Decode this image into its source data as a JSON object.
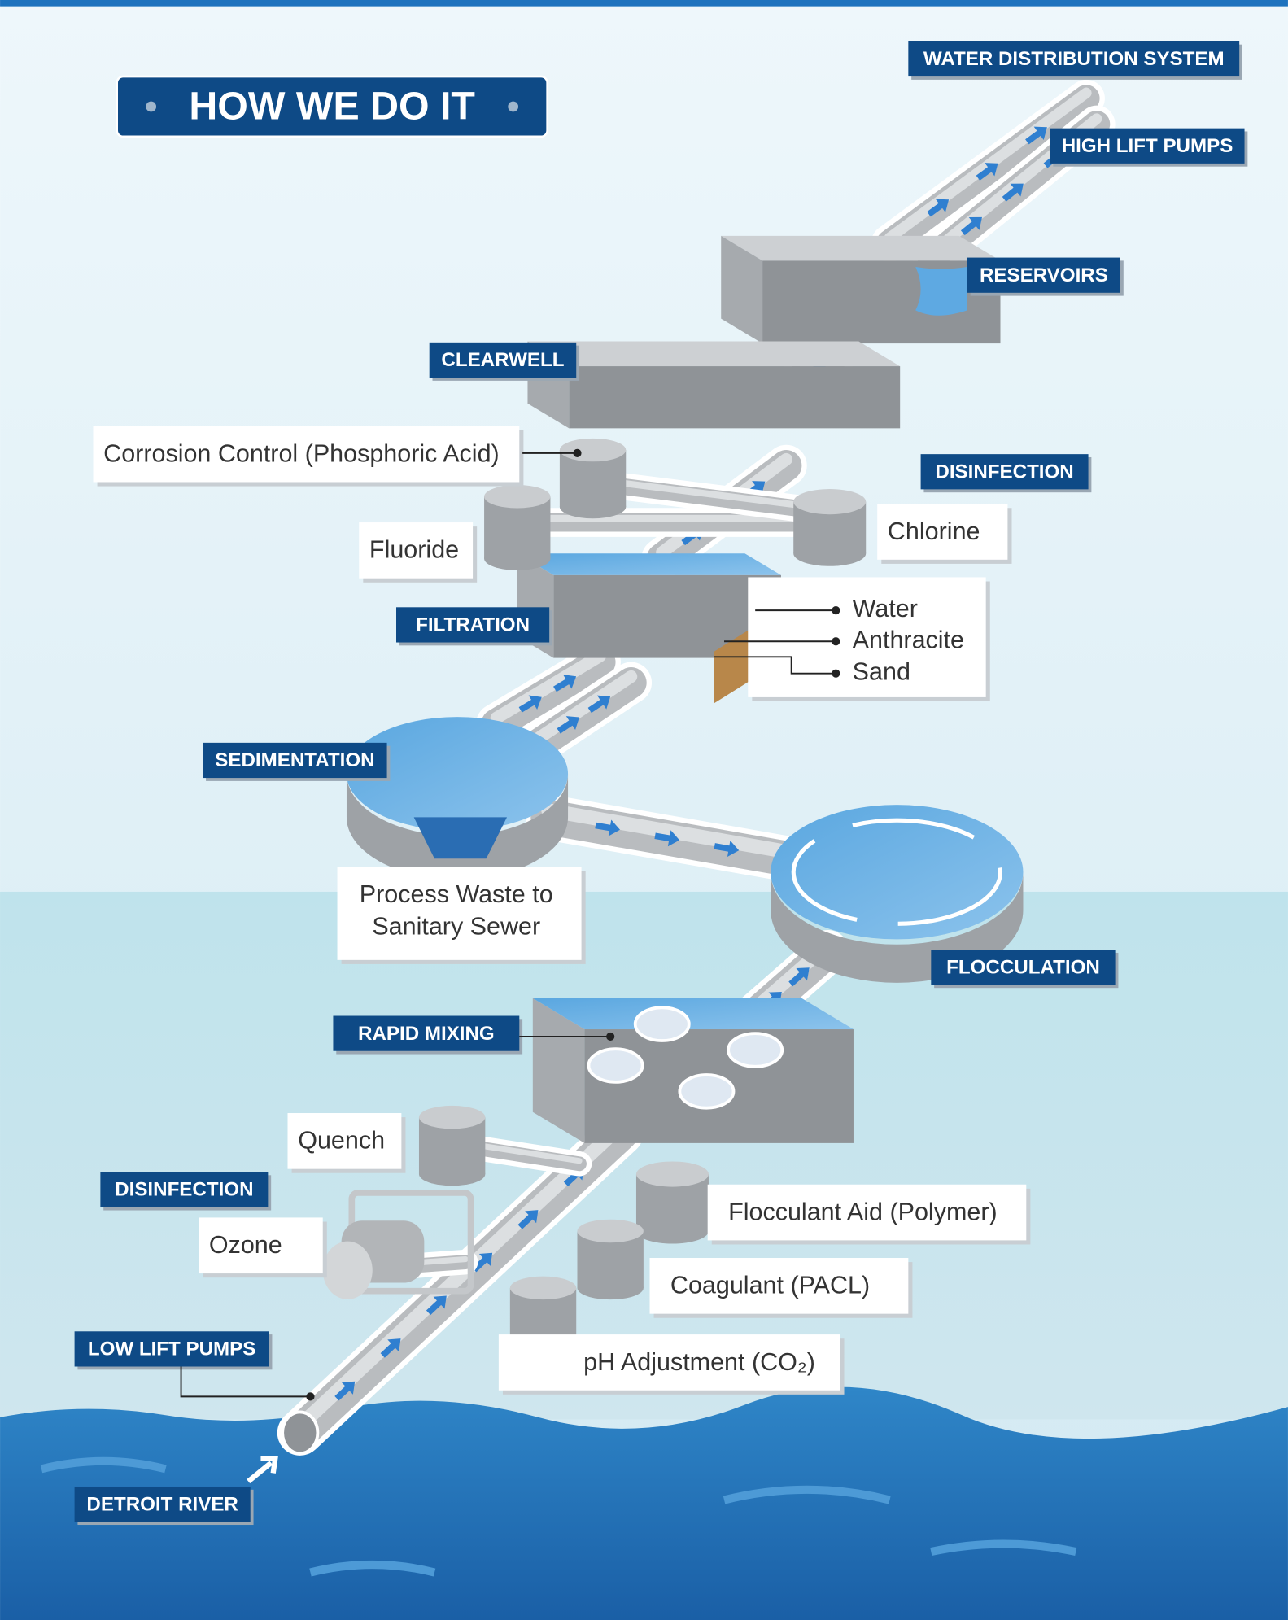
{
  "header": {
    "title": "HOW WE DO IT"
  },
  "stage_labels": [
    "WATER DISTRIBUTION SYSTEM",
    "HIGH LIFT PUMPS",
    "RESERVOIRS",
    "CLEARWELL",
    "DISINFECTION",
    "FILTRATION",
    "SEDIMENTATION",
    "FLOCCULATION",
    "RAPID MIXING",
    "DISINFECTION",
    "LOW LIFT PUMPS",
    "DETROIT RIVER"
  ],
  "callouts": [
    "Corrosion Control (Phosphoric Acid)",
    "Fluoride",
    "Chlorine",
    "Quench",
    "Ozone",
    "Flocculant Aid (Polymer)",
    "Coagulant (PACL)",
    "pH Adjustment (CO₂)"
  ],
  "process_waste": {
    "lines": [
      "Process Waste to",
      "Sanitary Sewer"
    ]
  },
  "filter_layers": [
    "Water",
    "Anthracite",
    "Sand"
  ]
}
